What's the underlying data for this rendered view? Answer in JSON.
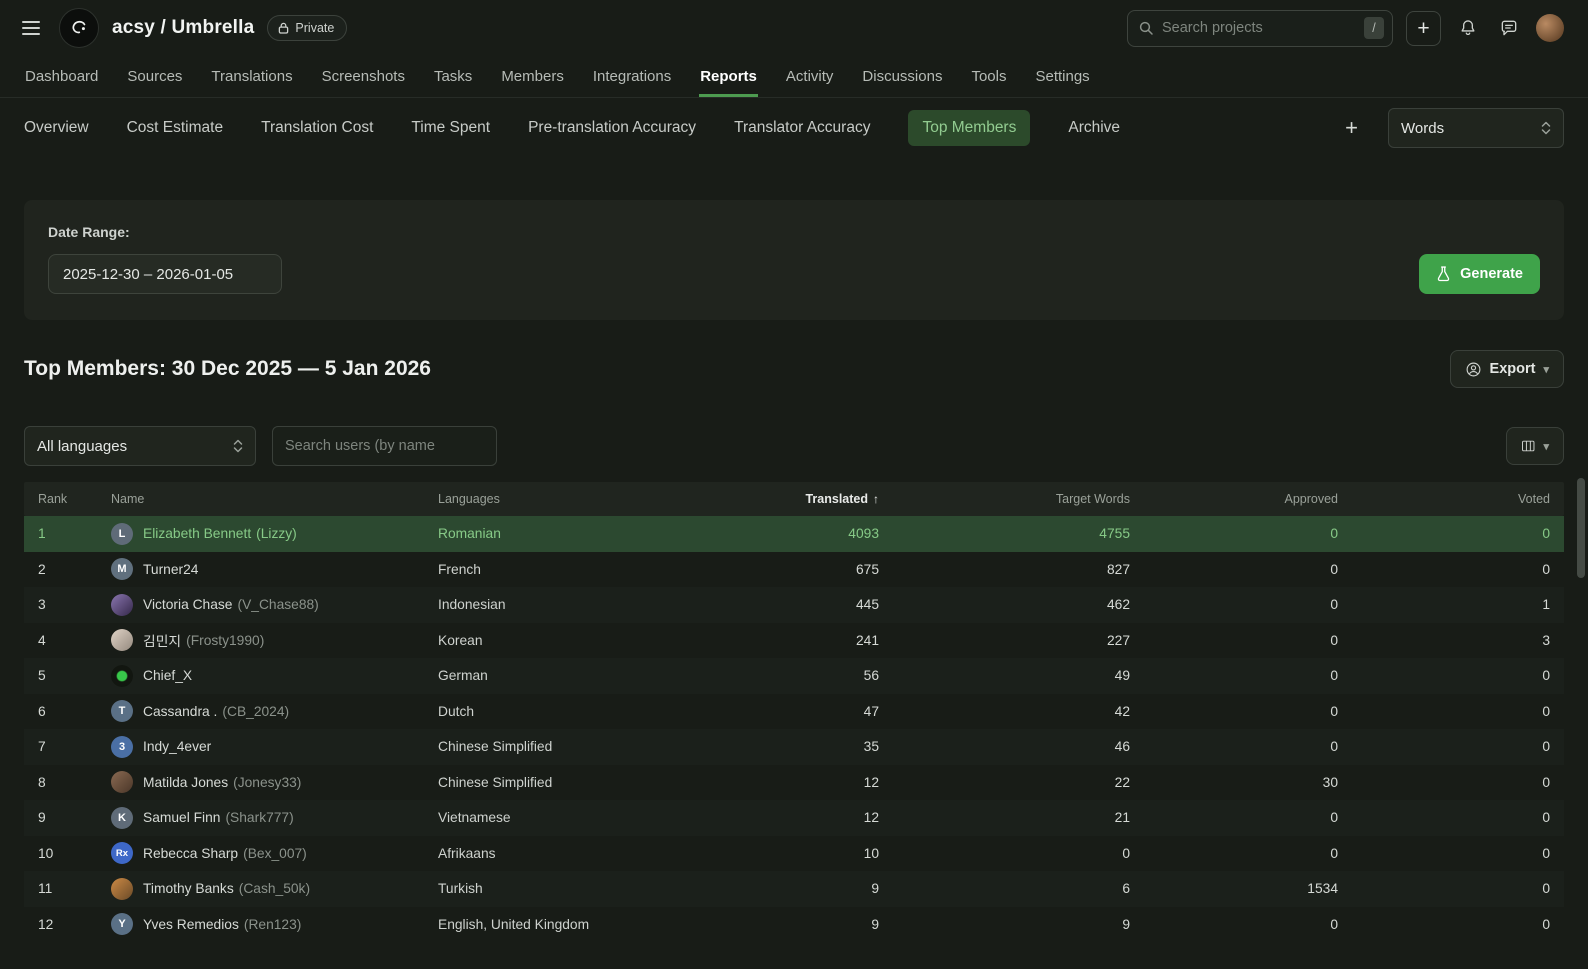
{
  "colors": {
    "accent_green": "#3fa34a",
    "active_pill_bg": "#2c4a2b",
    "highlight_row_bg": "#2c4930",
    "highlight_text": "#87ca87"
  },
  "header": {
    "project_title": "acsy / Umbrella",
    "privacy_badge": "Private",
    "search_placeholder": "Search projects",
    "search_shortcut": "/",
    "create_label": "+"
  },
  "nav": {
    "items": [
      "Dashboard",
      "Sources",
      "Translations",
      "Screenshots",
      "Tasks",
      "Members",
      "Integrations",
      "Reports",
      "Activity",
      "Discussions",
      "Tools",
      "Settings"
    ],
    "active": "Reports"
  },
  "subnav": {
    "items": [
      "Overview",
      "Cost Estimate",
      "Translation Cost",
      "Time Spent",
      "Pre-translation Accuracy",
      "Translator Accuracy",
      "Top Members",
      "Archive"
    ],
    "active": "Top Members",
    "add_label": "+",
    "unit_select_value": "Words"
  },
  "generator": {
    "date_range_label": "Date Range:",
    "date_range_value": "2025-12-30 – 2026-01-05",
    "generate_label": "Generate"
  },
  "report": {
    "title": "Top Members: 30 Dec 2025 — 5 Jan 2026",
    "export_label": "Export",
    "language_filter_value": "All languages",
    "user_search_placeholder": "Search users (by name"
  },
  "table": {
    "columns": [
      "Rank",
      "Name",
      "Languages",
      "Translated",
      "Target Words",
      "Approved",
      "Voted"
    ],
    "sort": {
      "column": "Translated",
      "direction": "asc",
      "arrow": "↑"
    },
    "rows": [
      {
        "rank": "1",
        "name": "Elizabeth Bennett",
        "username": "Lizzy",
        "avatar": {
          "type": "letter",
          "label": "L",
          "bg": "#5f6b78"
        },
        "languages": "Romanian",
        "translated": "4093",
        "target_words": "4755",
        "approved": "0",
        "voted": "0",
        "highlighted": true
      },
      {
        "rank": "2",
        "name": "Turner24",
        "username": "",
        "avatar": {
          "type": "letter",
          "label": "M",
          "bg": "#60707e"
        },
        "languages": "French",
        "translated": "675",
        "target_words": "827",
        "approved": "0",
        "voted": "0"
      },
      {
        "rank": "3",
        "name": "Victoria Chase",
        "username": "V_Chase88",
        "avatar": {
          "type": "image",
          "label": "",
          "bg": "linear-gradient(135deg,#8a76b0,#35284a)"
        },
        "languages": "Indonesian",
        "translated": "445",
        "target_words": "462",
        "approved": "0",
        "voted": "1"
      },
      {
        "rank": "4",
        "name": "김민지",
        "username": "Frosty1990",
        "avatar": {
          "type": "image",
          "label": "",
          "bg": "linear-gradient(135deg,#e0d3c6,#94897e)"
        },
        "languages": "Korean",
        "translated": "241",
        "target_words": "227",
        "approved": "0",
        "voted": "3"
      },
      {
        "rank": "5",
        "name": "Chief_X",
        "username": "",
        "avatar": {
          "type": "image",
          "label": "",
          "bg": "radial-gradient(circle,#38c84a 30%,#121610 38%)"
        },
        "languages": "German",
        "translated": "56",
        "target_words": "49",
        "approved": "0",
        "voted": "0"
      },
      {
        "rank": "6",
        "name": "Cassandra .",
        "username": "CB_2024",
        "avatar": {
          "type": "letter",
          "label": "T",
          "bg": "#5a7086"
        },
        "languages": "Dutch",
        "translated": "47",
        "target_words": "42",
        "approved": "0",
        "voted": "0"
      },
      {
        "rank": "7",
        "name": "Indy_4ever",
        "username": "",
        "avatar": {
          "type": "letter",
          "label": "3",
          "bg": "#4a6fa5"
        },
        "languages": "Chinese Simplified",
        "translated": "35",
        "target_words": "46",
        "approved": "0",
        "voted": "0"
      },
      {
        "rank": "8",
        "name": "Matilda Jones",
        "username": "Jonesy33",
        "avatar": {
          "type": "image",
          "label": "",
          "bg": "linear-gradient(135deg,#8a6a52,#4a3628)"
        },
        "languages": "Chinese Simplified",
        "translated": "12",
        "target_words": "22",
        "approved": "30",
        "voted": "0"
      },
      {
        "rank": "9",
        "name": "Samuel Finn",
        "username": "Shark777",
        "avatar": {
          "type": "letter",
          "label": "K",
          "bg": "#5f6b78"
        },
        "languages": "Vietnamese",
        "translated": "12",
        "target_words": "21",
        "approved": "0",
        "voted": "0"
      },
      {
        "rank": "10",
        "name": "Rebecca Sharp",
        "username": "Bex_007",
        "avatar": {
          "type": "letter",
          "label": "Rx",
          "bg": "#3e68c8"
        },
        "languages": "Afrikaans",
        "translated": "10",
        "target_words": "0",
        "approved": "0",
        "voted": "0"
      },
      {
        "rank": "11",
        "name": "Timothy Banks",
        "username": "Cash_50k",
        "avatar": {
          "type": "image",
          "label": "",
          "bg": "linear-gradient(135deg,#cd8a45,#6a4a28)"
        },
        "languages": "Turkish",
        "translated": "9",
        "target_words": "6",
        "approved": "1534",
        "voted": "0"
      },
      {
        "rank": "12",
        "name": "Yves Remedios",
        "username": "Ren123",
        "avatar": {
          "type": "letter",
          "label": "Y",
          "bg": "#5a7086"
        },
        "languages": "English, United Kingdom",
        "translated": "9",
        "target_words": "9",
        "approved": "0",
        "voted": "0"
      }
    ]
  }
}
